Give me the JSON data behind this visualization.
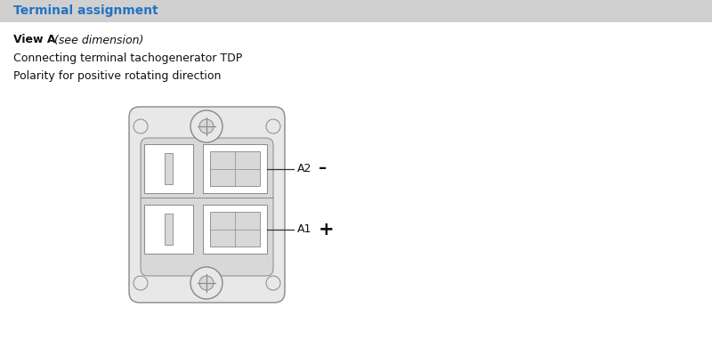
{
  "bg_color": "#ffffff",
  "header_bg": "#d0d0d0",
  "header_text": "Terminal assignment",
  "header_text_color": "#2272c3",
  "header_font_size": 10,
  "view_bold": "View A",
  "view_italic": " (see dimension)",
  "line2": "Connecting terminal tachogenerator TDP",
  "line3": "Polarity for positive rotating direction",
  "text_color": "#111111",
  "text_font_size": 9,
  "diagram_color": "#888888",
  "label_A2": "A2",
  "label_A1": "A1",
  "minus_symbol": "–",
  "plus_symbol": "+"
}
